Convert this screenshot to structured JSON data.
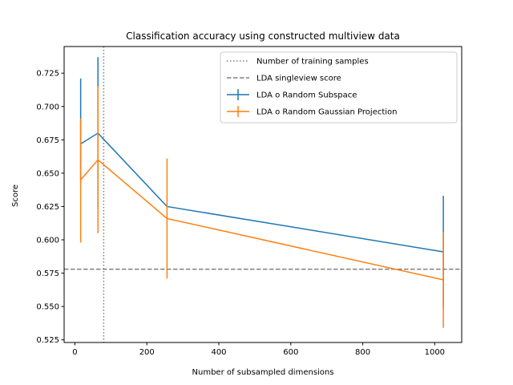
{
  "chart_data": {
    "type": "line",
    "title": "Classification accuracy using constructed multiview data",
    "xlabel": "Number of subsampled dimensions",
    "ylabel": "Score",
    "xlim": [
      -30,
      1075
    ],
    "ylim": [
      0.523,
      0.745
    ],
    "xticks": [
      0,
      200,
      400,
      600,
      800,
      1000
    ],
    "xtick_labels": [
      "0",
      "200",
      "400",
      "600",
      "800",
      "1000"
    ],
    "yticks": [
      0.525,
      0.55,
      0.575,
      0.6,
      0.625,
      0.65,
      0.675,
      0.7,
      0.725
    ],
    "ytick_labels": [
      "0.525",
      "0.550",
      "0.575",
      "0.600",
      "0.625",
      "0.650",
      "0.675",
      "0.700",
      "0.725"
    ],
    "grid": false,
    "legend_position": "top-right",
    "reference_lines": [
      {
        "name": "Number of training samples",
        "orientation": "vertical",
        "value": 80,
        "style": "dotted",
        "color": "#808080"
      },
      {
        "name": "LDA singleview score",
        "orientation": "horizontal",
        "value": 0.578,
        "style": "dashed",
        "color": "#808080"
      }
    ],
    "series": [
      {
        "name": "LDA o Random Subspace",
        "color": "#1f77b4",
        "x": [
          16,
          64,
          256,
          1024
        ],
        "y": [
          0.672,
          0.68,
          0.625,
          0.591
        ],
        "err_low": [
          0.643,
          0.623,
          0.625,
          0.549
        ],
        "err_high": [
          0.721,
          0.737,
          0.625,
          0.633
        ]
      },
      {
        "name": "LDA o Random Gaussian Projection",
        "color": "#ff7f0e",
        "x": [
          16,
          64,
          256,
          1024
        ],
        "y": [
          0.645,
          0.66,
          0.616,
          0.57
        ],
        "err_low": [
          0.598,
          0.605,
          0.571,
          0.534
        ],
        "err_high": [
          0.691,
          0.715,
          0.661,
          0.606
        ]
      }
    ]
  }
}
